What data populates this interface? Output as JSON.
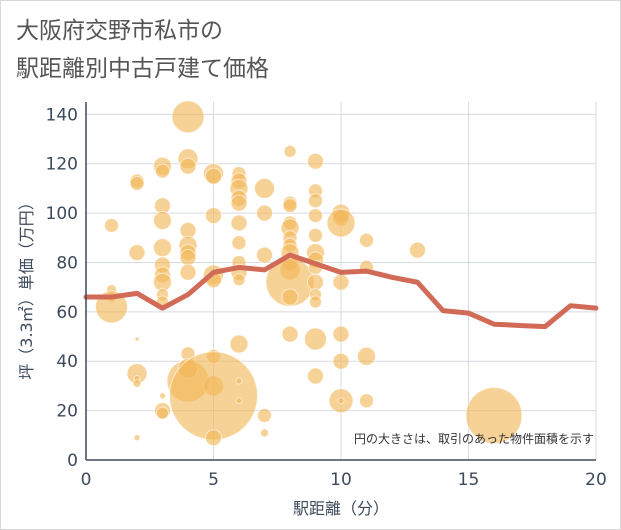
{
  "title": "大阪府交野市私市の\n駅距離別中古戸建て価格",
  "chart_data": {
    "type": "scatter",
    "title": "大阪府交野市私市の駅距離別中古戸建て価格",
    "xlabel": "駅距離（分）",
    "ylabel": "坪（3.3㎡）単価（万円）",
    "xlim": [
      0,
      20
    ],
    "ylim": [
      0,
      145
    ],
    "xticks": [
      0,
      5,
      10,
      15,
      20
    ],
    "yticks": [
      0,
      20,
      40,
      60,
      80,
      100,
      120,
      140
    ],
    "grid": true,
    "annotation": "円の大きさは、取引のあった物件面積を示す",
    "colors": {
      "bubble": "#f2b656",
      "line": "#d16a57"
    },
    "bubbles": [
      {
        "x": 1,
        "y": 95,
        "size": 7
      },
      {
        "x": 1,
        "y": 69,
        "size": 5
      },
      {
        "x": 1,
        "y": 66,
        "size": 5
      },
      {
        "x": 1,
        "y": 62,
        "size": 16
      },
      {
        "x": 2,
        "y": 113,
        "size": 7
      },
      {
        "x": 2,
        "y": 112,
        "size": 7
      },
      {
        "x": 2,
        "y": 84,
        "size": 8
      },
      {
        "x": 2,
        "y": 49,
        "size": 2
      },
      {
        "x": 2,
        "y": 35,
        "size": 10
      },
      {
        "x": 2,
        "y": 33,
        "size": 3
      },
      {
        "x": 2,
        "y": 31,
        "size": 4
      },
      {
        "x": 2,
        "y": 9,
        "size": 3
      },
      {
        "x": 3,
        "y": 119,
        "size": 9
      },
      {
        "x": 3,
        "y": 117,
        "size": 7
      },
      {
        "x": 3,
        "y": 103,
        "size": 8
      },
      {
        "x": 3,
        "y": 97,
        "size": 9
      },
      {
        "x": 3,
        "y": 86,
        "size": 9
      },
      {
        "x": 3,
        "y": 79,
        "size": 8
      },
      {
        "x": 3,
        "y": 75,
        "size": 8
      },
      {
        "x": 3,
        "y": 72,
        "size": 9
      },
      {
        "x": 3,
        "y": 67,
        "size": 6
      },
      {
        "x": 3,
        "y": 64,
        "size": 6
      },
      {
        "x": 3,
        "y": 26,
        "size": 3
      },
      {
        "x": 3,
        "y": 20,
        "size": 8
      },
      {
        "x": 3,
        "y": 19,
        "size": 6
      },
      {
        "x": 4,
        "y": 139,
        "size": 16
      },
      {
        "x": 4,
        "y": 122,
        "size": 10
      },
      {
        "x": 4,
        "y": 119,
        "size": 8
      },
      {
        "x": 4,
        "y": 93,
        "size": 8
      },
      {
        "x": 4,
        "y": 87,
        "size": 9
      },
      {
        "x": 4,
        "y": 84,
        "size": 8
      },
      {
        "x": 4,
        "y": 82,
        "size": 8
      },
      {
        "x": 4,
        "y": 76,
        "size": 8
      },
      {
        "x": 4,
        "y": 43,
        "size": 7
      },
      {
        "x": 4,
        "y": 32,
        "size": 21
      },
      {
        "x": 4,
        "y": 37,
        "size": 10
      },
      {
        "x": 5,
        "y": 116,
        "size": 10
      },
      {
        "x": 5,
        "y": 115,
        "size": 8
      },
      {
        "x": 5,
        "y": 99,
        "size": 8
      },
      {
        "x": 5,
        "y": 75,
        "size": 10
      },
      {
        "x": 5,
        "y": 73,
        "size": 8
      },
      {
        "x": 5,
        "y": 42,
        "size": 7
      },
      {
        "x": 5,
        "y": 30,
        "size": 10
      },
      {
        "x": 5,
        "y": 26,
        "size": 44
      },
      {
        "x": 5,
        "y": 9,
        "size": 8
      },
      {
        "x": 6,
        "y": 116,
        "size": 7
      },
      {
        "x": 6,
        "y": 113,
        "size": 8
      },
      {
        "x": 6,
        "y": 110,
        "size": 9
      },
      {
        "x": 6,
        "y": 106,
        "size": 8
      },
      {
        "x": 6,
        "y": 104,
        "size": 8
      },
      {
        "x": 6,
        "y": 96,
        "size": 8
      },
      {
        "x": 6,
        "y": 88,
        "size": 7
      },
      {
        "x": 6,
        "y": 80,
        "size": 7
      },
      {
        "x": 6,
        "y": 76,
        "size": 8
      },
      {
        "x": 6,
        "y": 73,
        "size": 6
      },
      {
        "x": 6,
        "y": 47,
        "size": 9
      },
      {
        "x": 6,
        "y": 32,
        "size": 3
      },
      {
        "x": 6,
        "y": 24,
        "size": 3
      },
      {
        "x": 7,
        "y": 110,
        "size": 10
      },
      {
        "x": 7,
        "y": 100,
        "size": 8
      },
      {
        "x": 7,
        "y": 83,
        "size": 8
      },
      {
        "x": 7,
        "y": 18,
        "size": 7
      },
      {
        "x": 7,
        "y": 11,
        "size": 4
      },
      {
        "x": 8,
        "y": 125,
        "size": 6
      },
      {
        "x": 8,
        "y": 104,
        "size": 7
      },
      {
        "x": 8,
        "y": 103,
        "size": 7
      },
      {
        "x": 8,
        "y": 96,
        "size": 7
      },
      {
        "x": 8,
        "y": 94,
        "size": 9
      },
      {
        "x": 8,
        "y": 90,
        "size": 7
      },
      {
        "x": 8,
        "y": 87,
        "size": 7
      },
      {
        "x": 8,
        "y": 84,
        "size": 9
      },
      {
        "x": 8,
        "y": 80,
        "size": 8
      },
      {
        "x": 8,
        "y": 77,
        "size": 10
      },
      {
        "x": 8,
        "y": 72,
        "size": 24
      },
      {
        "x": 8,
        "y": 66,
        "size": 8
      },
      {
        "x": 8,
        "y": 51,
        "size": 8
      },
      {
        "x": 9,
        "y": 121,
        "size": 8
      },
      {
        "x": 9,
        "y": 109,
        "size": 7
      },
      {
        "x": 9,
        "y": 105,
        "size": 7
      },
      {
        "x": 9,
        "y": 99,
        "size": 7
      },
      {
        "x": 9,
        "y": 91,
        "size": 7
      },
      {
        "x": 9,
        "y": 84,
        "size": 9
      },
      {
        "x": 9,
        "y": 81,
        "size": 8
      },
      {
        "x": 9,
        "y": 78,
        "size": 7
      },
      {
        "x": 9,
        "y": 72,
        "size": 8
      },
      {
        "x": 9,
        "y": 67,
        "size": 6
      },
      {
        "x": 9,
        "y": 64,
        "size": 6
      },
      {
        "x": 9,
        "y": 49,
        "size": 11
      },
      {
        "x": 9,
        "y": 34,
        "size": 8
      },
      {
        "x": 10,
        "y": 100,
        "size": 9
      },
      {
        "x": 10,
        "y": 98,
        "size": 8
      },
      {
        "x": 10,
        "y": 96,
        "size": 14
      },
      {
        "x": 10,
        "y": 72,
        "size": 8
      },
      {
        "x": 10,
        "y": 51,
        "size": 8
      },
      {
        "x": 10,
        "y": 40,
        "size": 8
      },
      {
        "x": 10,
        "y": 24,
        "size": 12
      },
      {
        "x": 10,
        "y": 24,
        "size": 3
      },
      {
        "x": 11,
        "y": 89,
        "size": 7
      },
      {
        "x": 11,
        "y": 78,
        "size": 7
      },
      {
        "x": 11,
        "y": 42,
        "size": 9
      },
      {
        "x": 11,
        "y": 24,
        "size": 7
      },
      {
        "x": 13,
        "y": 85,
        "size": 8
      },
      {
        "x": 16,
        "y": 18,
        "size": 28
      }
    ],
    "series": [
      {
        "type": "line",
        "x": [
          0,
          1,
          2,
          3,
          4,
          5,
          6,
          7,
          8,
          9,
          10,
          11,
          12,
          13,
          14,
          15,
          16,
          17,
          18,
          19,
          20
        ],
        "values": [
          66,
          66,
          67.5,
          61.5,
          67,
          76,
          78,
          77,
          83,
          79.5,
          76,
          76.5,
          74,
          72,
          60.5,
          59.5,
          55,
          54.5,
          54,
          62.5,
          61.5
        ]
      }
    ]
  }
}
